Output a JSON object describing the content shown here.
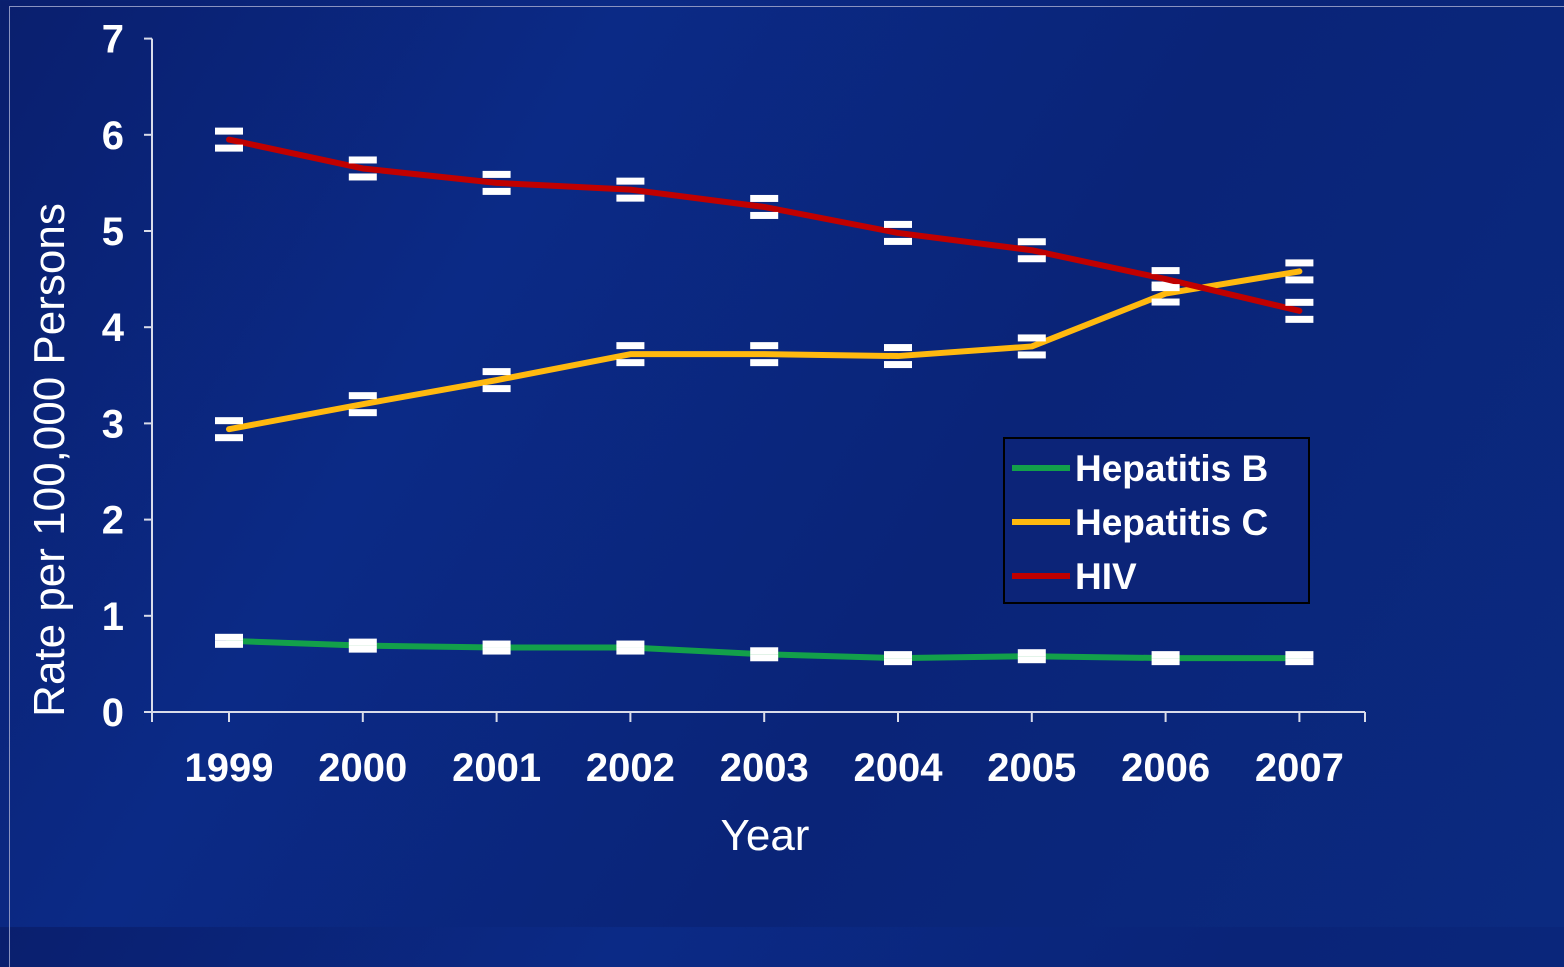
{
  "chart_data": {
    "type": "line",
    "title": "",
    "xlabel": "Year",
    "ylabel": "Rate per 100,000 Persons",
    "categories": [
      "1999",
      "2000",
      "2001",
      "2002",
      "2003",
      "2004",
      "2005",
      "2006",
      "2007"
    ],
    "yticks": [
      "0",
      "1",
      "2",
      "3",
      "4",
      "5",
      "6",
      "7"
    ],
    "ylim": [
      0,
      7
    ],
    "legend_position": "right",
    "grid": false,
    "error_bars": true,
    "series": [
      {
        "name": "Hepatitis B",
        "color": "#13a04a",
        "values": [
          0.74,
          0.69,
          0.67,
          0.67,
          0.6,
          0.56,
          0.58,
          0.56,
          0.56
        ]
      },
      {
        "name": "Hepatitis C",
        "color": "#ffb90f",
        "values": [
          2.94,
          3.2,
          3.45,
          3.72,
          3.72,
          3.7,
          3.8,
          4.35,
          4.58
        ]
      },
      {
        "name": "HIV",
        "color": "#c00000",
        "values": [
          5.95,
          5.65,
          5.5,
          5.43,
          5.25,
          4.98,
          4.8,
          4.5,
          4.17
        ]
      }
    ]
  }
}
